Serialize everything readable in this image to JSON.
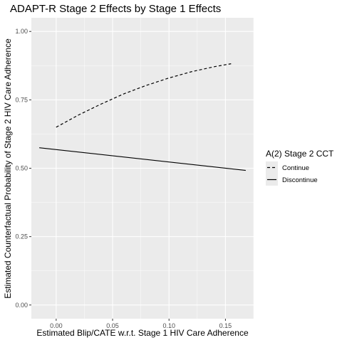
{
  "chart_data": {
    "type": "line",
    "title": "ADAPT-R Stage 2 Effects by Stage 1 Effects",
    "xlabel": "Estimated Blip/CATE w.r.t. Stage 1 HIV Care Adherence",
    "ylabel": "Estimated Counterfactual Probability of Stage 2 HIV Care Adherence",
    "xlim": [
      -0.022,
      0.175
    ],
    "ylim": [
      -0.05,
      1.05
    ],
    "x_ticks": [
      0.0,
      0.05,
      0.1,
      0.15
    ],
    "x_tick_labels": [
      "0.00",
      "0.05",
      "0.10",
      "0.15"
    ],
    "y_ticks": [
      0.0,
      0.25,
      0.5,
      0.75,
      1.0
    ],
    "y_tick_labels": [
      "0.00",
      "0.25",
      "0.50",
      "0.75",
      "1.00"
    ],
    "grid": true,
    "legend": {
      "title": "A(2) Stage 2 CCT",
      "position": "right"
    },
    "series": [
      {
        "name": "Continue",
        "linestyle": "dashed",
        "color": "#000000",
        "x": [
          0.0,
          0.02,
          0.04,
          0.06,
          0.08,
          0.1,
          0.12,
          0.14,
          0.155
        ],
        "y": [
          0.65,
          0.695,
          0.735,
          0.772,
          0.803,
          0.83,
          0.853,
          0.871,
          0.882
        ]
      },
      {
        "name": "Discontinue",
        "linestyle": "solid",
        "color": "#000000",
        "x": [
          -0.015,
          0.168
        ],
        "y": [
          0.575,
          0.492
        ]
      }
    ],
    "panel_background": "#ebebeb",
    "grid_color": "#ffffff"
  }
}
